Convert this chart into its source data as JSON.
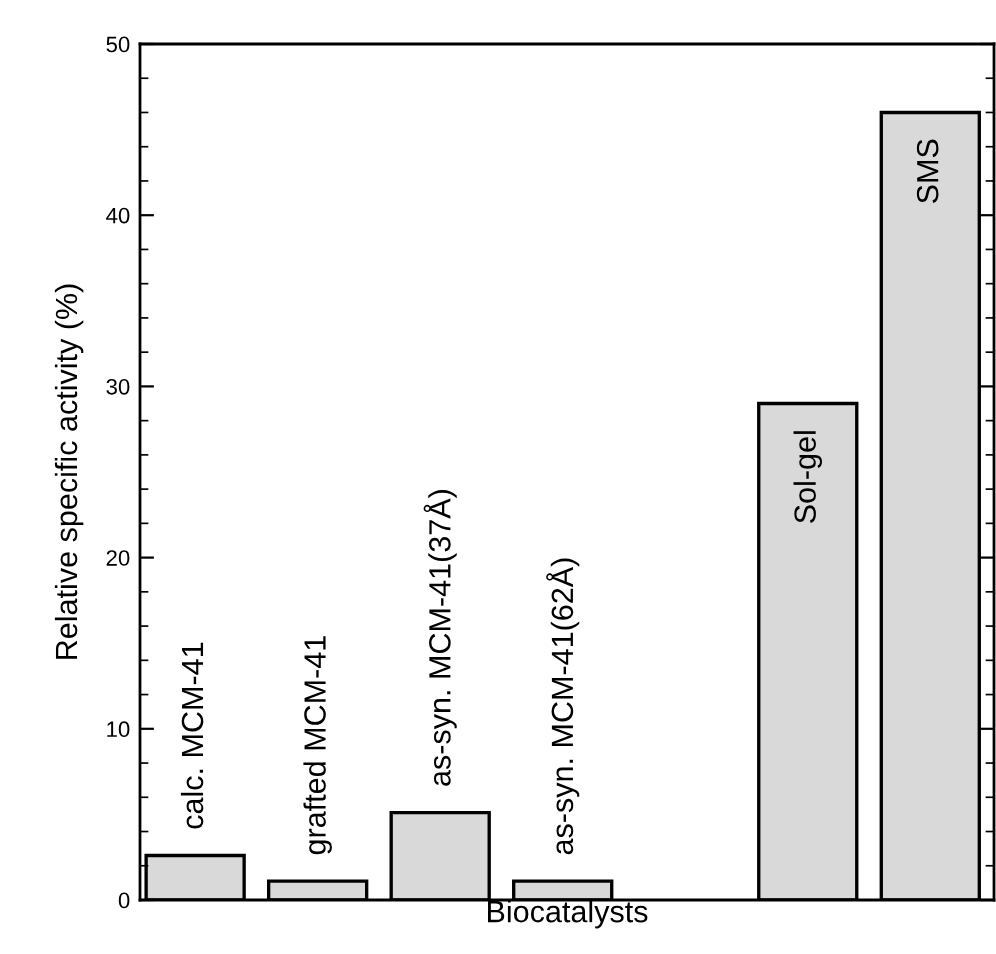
{
  "chart_data": {
    "type": "bar",
    "xlabel": "Biocatalysts",
    "ylabel": "Relative specific activity (%)",
    "categories": [
      "calc. MCM-41",
      "grafted MCM-41",
      "as-syn. MCM-41(37Å)",
      "as-syn. MCM-41(62Å)",
      null,
      "Sol-gel",
      "SMS"
    ],
    "values": [
      2.6,
      1.1,
      5.1,
      1.1,
      null,
      29,
      46
    ],
    "color": "#d9d9d9",
    "ylim": [
      0,
      50
    ],
    "yticks": [
      0,
      10,
      20,
      30,
      40,
      50
    ],
    "tick_labels": "y",
    "grid": false,
    "legend": false
  }
}
